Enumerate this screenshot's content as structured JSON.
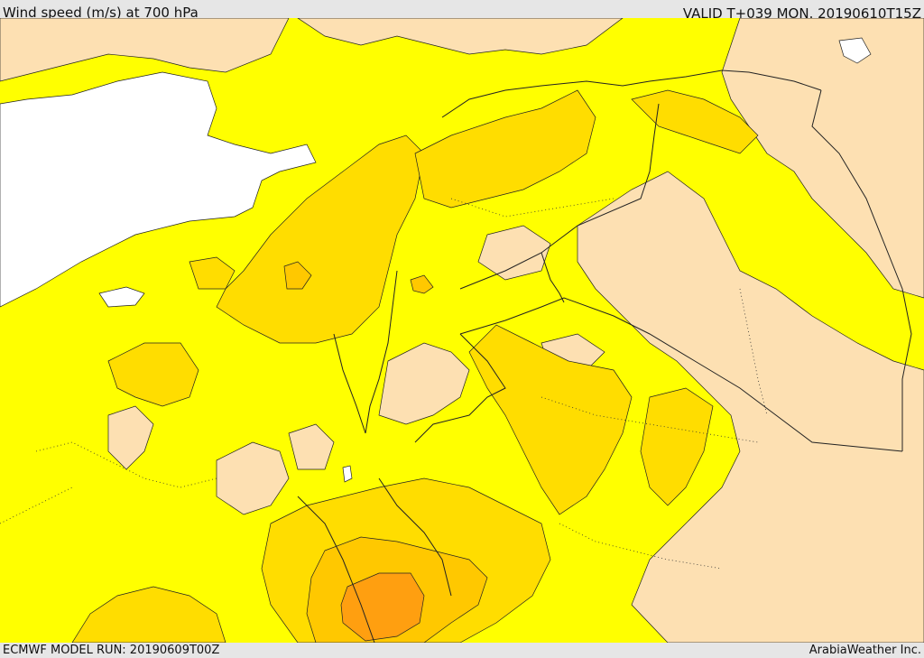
{
  "header": {
    "title": "Wind speed (m/s) at 700 hPa",
    "valid": "VALID T+039 MON. 20190610T15Z"
  },
  "footer": {
    "model_run": "ECMWF MODEL RUN: 20190609T00Z",
    "credit": "ArabiaWeather Inc."
  },
  "colors": {
    "sea": "#ffffff",
    "band_low": "#fde0b2",
    "band_mid": "#ffff00",
    "band_high": "#ffdd00",
    "band_higher": "#ffc800",
    "band_max": "#ff9f10",
    "border": "#222222"
  }
}
